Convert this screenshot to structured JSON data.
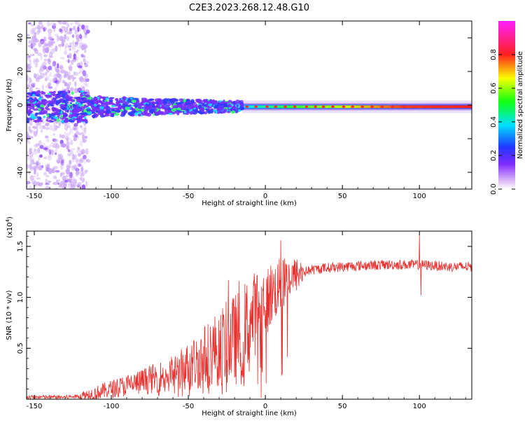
{
  "title": "C2E3.2023.268.12.48.G10",
  "chart_data": [
    {
      "type": "heatmap",
      "xlabel": "Height of straight line (km)",
      "ylabel": "Frequency (Hz)",
      "xlim": [
        -155,
        134
      ],
      "ylim": [
        -50,
        50
      ],
      "xticks": [
        -150,
        -100,
        -50,
        0,
        50,
        100
      ],
      "yticks": [
        -40,
        -20,
        0,
        20,
        40
      ],
      "colorbar": {
        "label": "Normalized spectral amplitude",
        "range": [
          0,
          1
        ],
        "ticks": [
          0.0,
          0.2,
          0.4,
          0.6,
          0.8
        ],
        "tick_labels": [
          "0.0",
          "0.2",
          "0.4",
          "0.6",
          "0.8"
        ],
        "colormap": "rainbow (white-violet-blue-cyan-green-yellow-red-magenta)"
      },
      "features": {
        "center_frequency_hz": -1,
        "noisy_region_x": [
          -155,
          -115
        ],
        "scatter_band_x": [
          -115,
          -15
        ],
        "coherent_tone_x": [
          -15,
          134
        ],
        "peak_amplitude_at_coherent": 0.95
      }
    },
    {
      "type": "line",
      "xlabel": "Height of straight line (km)",
      "ylabel": "SNR (10 * v/v)",
      "y_exponent_label": "(x10",
      "y_exponent": "4",
      "y_exponent_close": ")",
      "xlim": [
        -155,
        134
      ],
      "ylim": [
        0,
        1.65
      ],
      "xticks": [
        -150,
        -100,
        -50,
        0,
        50,
        100
      ],
      "yticks": [
        0.5,
        1.0,
        1.5
      ],
      "ytick_labels": [
        "0.5",
        "1.0",
        "1.5"
      ],
      "series": [
        {
          "color": "#e8302e",
          "trend_x": [
            -155,
            -130,
            -120,
            -110,
            -100,
            -80,
            -60,
            -45,
            -35,
            -25,
            -15,
            -10,
            -5,
            0,
            5,
            10,
            15,
            20,
            25,
            30,
            35,
            40,
            50,
            60,
            80,
            100,
            110,
            120,
            134
          ],
          "trend_y": [
            0.02,
            0.02,
            0.03,
            0.06,
            0.1,
            0.17,
            0.26,
            0.36,
            0.47,
            0.55,
            0.62,
            0.75,
            0.9,
            0.98,
            1.05,
            1.12,
            1.18,
            1.22,
            1.25,
            1.27,
            1.28,
            1.29,
            1.3,
            1.31,
            1.32,
            1.32,
            1.31,
            1.3,
            1.3
          ],
          "spikes": [
            {
              "x": 10,
              "y": 1.56
            },
            {
              "x": 10.5,
              "y": 0.23
            },
            {
              "x": 100,
              "y": 1.62
            },
            {
              "x": 101,
              "y": 1.02
            },
            {
              "x": -24,
              "y": 1.17
            },
            {
              "x": -17,
              "y": 1.16
            },
            {
              "x": 1,
              "y": 0.72
            }
          ]
        }
      ]
    }
  ]
}
